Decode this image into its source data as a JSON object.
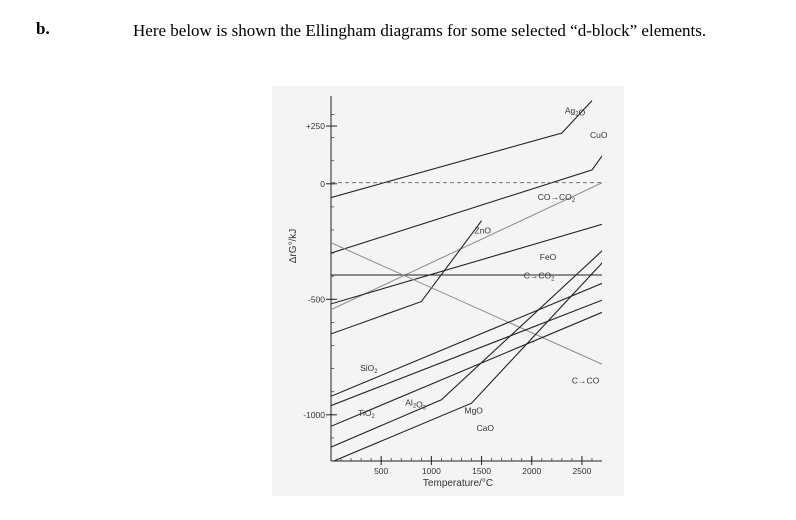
{
  "question": {
    "letter": "b.",
    "text": "Here below is shown the Ellingham diagrams for some selected “d-block” elements."
  },
  "chart_data": {
    "type": "line",
    "xlabel": "Temperature/°C",
    "ylabel": "ΔrG°/kJ",
    "xlim": [
      0,
      2700
    ],
    "ylim": [
      -1200,
      380
    ],
    "x_ticks": [
      500,
      1000,
      1500,
      2000,
      2500
    ],
    "x_tick_labels": [
      "500",
      "1000",
      "1500",
      "2000",
      "2500"
    ],
    "y_ticks": [
      250,
      0,
      -500,
      -1000
    ],
    "y_tick_labels": [
      "+250",
      "0",
      "-500",
      "-1000"
    ],
    "colors": {
      "line": "#222222",
      "grey_line": "#8a8a8a",
      "dashed_line": "#777777",
      "background": "#f4f4f4"
    },
    "series": [
      {
        "name": "Ag₂O",
        "style": "solid",
        "x": [
          0,
          2300,
          2600
        ],
        "y": [
          -60,
          220,
          360
        ]
      },
      {
        "name": "CuO",
        "style": "solid",
        "x": [
          0,
          2600,
          2900
        ],
        "y": [
          -300,
          60,
          240
        ]
      },
      {
        "name": "CO→CO₂",
        "style": "dashed",
        "x": [
          0,
          2900
        ],
        "y": [
          5,
          5
        ]
      },
      {
        "name": "",
        "style": "grey",
        "x": [
          0,
          2900
        ],
        "y": [
          -545,
          45
        ]
      },
      {
        "name": "ZnO",
        "style": "solid",
        "x": [
          0,
          900,
          1500
        ],
        "y": [
          -650,
          -510,
          -160
        ]
      },
      {
        "name": "FeO",
        "style": "solid",
        "x": [
          0,
          2900
        ],
        "y": [
          -520,
          -150
        ]
      },
      {
        "name": "C→CO₂",
        "style": "solid",
        "x": [
          0,
          2900
        ],
        "y": [
          -395,
          -395
        ]
      },
      {
        "name": "C→CO",
        "style": "grey",
        "x": [
          0,
          2900
        ],
        "y": [
          -255,
          -820
        ]
      },
      {
        "name": "SiO₂",
        "style": "solid",
        "x": [
          0,
          2900
        ],
        "y": [
          -920,
          -395
        ]
      },
      {
        "name": "TiO₂",
        "style": "solid",
        "x": [
          0,
          2900
        ],
        "y": [
          -960,
          -470
        ]
      },
      {
        "name": "Al₂O₃",
        "style": "solid",
        "x": [
          0,
          2900
        ],
        "y": [
          -1050,
          -520
        ]
      },
      {
        "name": "MgO",
        "style": "solid",
        "x": [
          0,
          1100,
          2900
        ],
        "y": [
          -1140,
          -935,
          -210
        ]
      },
      {
        "name": "CaO",
        "style": "solid",
        "x": [
          0,
          1400,
          2900
        ],
        "y": [
          -1205,
          -950,
          -250
        ]
      }
    ],
    "annotations": [
      {
        "text": "Ag₂O",
        "x": 2330,
        "y": 305
      },
      {
        "text": "CuO",
        "x": 2580,
        "y": 198
      },
      {
        "text": "CO→CO₂",
        "x": 2060,
        "y": -70
      },
      {
        "text": "ZnO",
        "x": 1430,
        "y": -215
      },
      {
        "text": "FeO",
        "x": 2080,
        "y": -330
      },
      {
        "text": "C→CO₂",
        "x": 1920,
        "y": -410
      },
      {
        "text": "SiO₂",
        "x": 290,
        "y": -810
      },
      {
        "text": "C→CO",
        "x": 2400,
        "y": -865
      },
      {
        "text": "TiO₂",
        "x": 270,
        "y": -1005
      },
      {
        "text": "Al₂O₃",
        "x": 740,
        "y": -960
      },
      {
        "text": "MgO",
        "x": 1330,
        "y": -995
      },
      {
        "text": "CaO",
        "x": 1450,
        "y": -1070
      }
    ]
  }
}
